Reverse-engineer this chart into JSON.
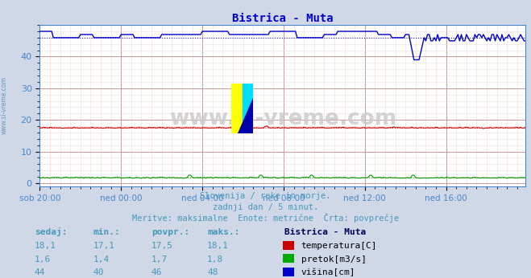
{
  "title": "Bistrica - Muta",
  "title_color": "#0000cc",
  "bg_color": "#d0d8e8",
  "plot_bg_color": "#ffffff",
  "xlabel_color": "#4488cc",
  "ylabel_ticks": [
    0,
    10,
    20,
    30,
    40
  ],
  "ylim": [
    -1,
    50
  ],
  "xlim": [
    0,
    287
  ],
  "xtick_labels": [
    "sob 20:00",
    "ned 00:00",
    "ned 04:00",
    "ned 08:00",
    "ned 12:00",
    "ned 16:00"
  ],
  "xtick_positions": [
    0,
    48,
    96,
    144,
    192,
    240
  ],
  "watermark": "www.si-vreme.com",
  "subtitle1": "Slovenija / reke in morje.",
  "subtitle2": "zadnji dan / 5 minut.",
  "subtitle3": "Meritve: maksimalne  Enote: metrične  Črta: povprečje",
  "subtitle_color": "#4499bb",
  "legend_title": "Bistrica - Muta",
  "legend_items": [
    {
      "label": "temperatura[C]",
      "color": "#cc0000"
    },
    {
      "label": "pretok[m3/s]",
      "color": "#00aa00"
    },
    {
      "label": "višina[cm]",
      "color": "#0000cc"
    }
  ],
  "table_headers": [
    "sedaj:",
    "min.:",
    "povpr.:",
    "maks.:"
  ],
  "table_data": [
    [
      "18,1",
      "17,1",
      "17,5",
      "18,1"
    ],
    [
      "1,6",
      "1,4",
      "1,7",
      "1,8"
    ],
    [
      "44",
      "40",
      "46",
      "48"
    ]
  ],
  "temp_avg": 17.5,
  "pretok_avg": 1.7,
  "visina_avg": 46,
  "n_points": 289,
  "figwidth": 6.59,
  "figheight": 3.46,
  "dpi": 100
}
